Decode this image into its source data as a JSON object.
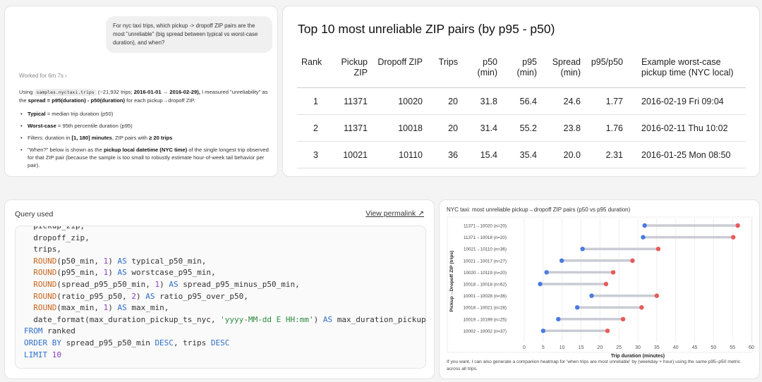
{
  "chat": {
    "user_message": "For nyc taxi trips, which pickup -> dropoff ZIP pairs are the most \"unreliable\" (big spread between typical vs worst-case duration), and when?",
    "worked_for": "Worked for 6m 7s ›",
    "intro_1": "Using ",
    "table_name": "samples.nyctaxi.trips",
    "intro_2": " (~21,932 trips; ",
    "intro_dates": "2016-01-01 → 2016-02-29),",
    "intro_3": " I measured \"unreliability\" as the ",
    "intro_formula": "spread = p95(duration) - p50(duration)",
    "intro_4": " for each pickup→dropoff ZIP.",
    "bullets": [
      {
        "b": "Typical",
        "t": " = median trip duration (p50)",
        "b2": "",
        "t2": ""
      },
      {
        "b": "Worst-case",
        "t": " = 95th percentile duration (p95)",
        "b2": "",
        "t2": ""
      },
      {
        "b": "",
        "t": "Filters: duration in ",
        "b2": "[1, 180] minutes",
        "t2": ", ZIP pairs with ",
        "b3": "≥ 20 trips"
      },
      {
        "b": "",
        "t": "\"When?\" below is shown as the ",
        "b2": "pickup local datetime (NYC time)",
        "t2": " of the single longest trip observed for that ZIP pair (because the sample is too small to robustly estimate hour-of-week tail behavior per pair)."
      }
    ]
  },
  "results": {
    "title": "Top 10 most unreliable ZIP pairs (by p95 - p50)",
    "headers": [
      "Rank",
      "Pickup ZIP",
      "Dropoff ZIP",
      "Trips",
      "p50 (min)",
      "p95 (min)",
      "Spread (min)",
      "p95/p50",
      "Example worst-case pickup time (NYC local)"
    ],
    "rows": [
      [
        "1",
        "11371",
        "10020",
        "20",
        "31.8",
        "56.4",
        "24.6",
        "1.77",
        "2016-02-19 Fri 09:04"
      ],
      [
        "2",
        "11371",
        "10018",
        "20",
        "31.4",
        "55.2",
        "23.8",
        "1.76",
        "2016-02-11 Thu 10:02"
      ],
      [
        "3",
        "10021",
        "10110",
        "36",
        "15.4",
        "35.4",
        "20.0",
        "2.31",
        "2016-01-25 Mon 08:50"
      ]
    ]
  },
  "query": {
    "label": "Query used",
    "permalink": "View permalink ↗",
    "lines": [
      [
        [
          "  pickup_zip,",
          ""
        ]
      ],
      [
        [
          "  dropoff_zip,",
          ""
        ]
      ],
      [
        [
          "  trips,",
          ""
        ]
      ],
      [
        [
          "  ",
          ""
        ],
        [
          "ROUND",
          "fn"
        ],
        [
          "(p50_min, ",
          ""
        ],
        [
          "1",
          "num"
        ],
        [
          ") ",
          ""
        ],
        [
          "AS",
          "kw"
        ],
        [
          " typical_p50_min,",
          ""
        ]
      ],
      [
        [
          "  ",
          ""
        ],
        [
          "ROUND",
          "fn"
        ],
        [
          "(p95_min, ",
          ""
        ],
        [
          "1",
          "num"
        ],
        [
          ") ",
          ""
        ],
        [
          "AS",
          "kw"
        ],
        [
          " worstcase_p95_min,",
          ""
        ]
      ],
      [
        [
          "  ",
          ""
        ],
        [
          "ROUND",
          "fn"
        ],
        [
          "(spread_p95_p50_min, ",
          ""
        ],
        [
          "1",
          "num"
        ],
        [
          ") ",
          ""
        ],
        [
          "AS",
          "kw"
        ],
        [
          " spread_p95_minus_p50_min,",
          ""
        ]
      ],
      [
        [
          "  ",
          ""
        ],
        [
          "ROUND",
          "fn"
        ],
        [
          "(ratio_p95_p50, ",
          ""
        ],
        [
          "2",
          "num"
        ],
        [
          ") ",
          ""
        ],
        [
          "AS",
          "kw"
        ],
        [
          " ratio_p95_over_p50,",
          ""
        ]
      ],
      [
        [
          "  ",
          ""
        ],
        [
          "ROUND",
          "fn"
        ],
        [
          "(max_min, ",
          ""
        ],
        [
          "1",
          "num"
        ],
        [
          ") ",
          ""
        ],
        [
          "AS",
          "kw"
        ],
        [
          " max_min,",
          ""
        ]
      ],
      [
        [
          "  date_format(max_duration_pickup_ts_nyc, ",
          ""
        ],
        [
          "'yyyy-MM-dd E HH:mm'",
          "str"
        ],
        [
          ") ",
          ""
        ],
        [
          "AS",
          "kw"
        ],
        [
          " max_duration_pickup_",
          ""
        ]
      ],
      [
        [
          "FROM",
          "kw"
        ],
        [
          " ranked",
          ""
        ]
      ],
      [
        [
          "ORDER BY",
          "kw"
        ],
        [
          " spread_p95_p50_min ",
          ""
        ],
        [
          "DESC",
          "kw"
        ],
        [
          ", trips ",
          ""
        ],
        [
          "DESC",
          "kw"
        ]
      ],
      [
        [
          "LIMIT",
          "kw"
        ],
        [
          " ",
          ""
        ],
        [
          "10",
          "num"
        ]
      ]
    ]
  },
  "chart_data": {
    "type": "dumbbell",
    "title": "NYC taxi: most unreliable pickup→dropoff ZIP pairs (p50 vs p95 duration)",
    "xlabel": "Trip duration (minutes)",
    "ylabel": "Pickup→Dropoff ZIP (trips)",
    "xlim": [
      0,
      60
    ],
    "xticks": [
      0,
      5,
      10,
      15,
      20,
      25,
      30,
      35,
      40,
      45,
      50,
      55,
      60
    ],
    "grid": true,
    "colors": {
      "p50": "#4a7be0",
      "p95": "#e85a5a",
      "line": "#c9ccd4"
    },
    "categories": [
      "11371→10020 (n=20)",
      "11371→10018 (n=20)",
      "10021→10110 (n=36)",
      "10021→10017 (n=27)",
      "10020→10119 (n=20)",
      "10018→10018 (n=62)",
      "10001→10028 (n=36)",
      "10018→10021 (n=28)",
      "10019→10199 (n=25)",
      "10002→10002 (n=37)"
    ],
    "p50": [
      31.8,
      31.4,
      15.4,
      9.9,
      5.9,
      4.2,
      17.8,
      14.0,
      9.0,
      5.0
    ],
    "p95": [
      56.4,
      55.2,
      35.4,
      28.6,
      23.5,
      21.6,
      35.0,
      31.0,
      26.1,
      22.0
    ]
  },
  "footnote": "If you want, I can also generate a companion heatmap for 'when trips are most unreliable' by (weekday × hour) using the same p95–p50 metric across all trips."
}
